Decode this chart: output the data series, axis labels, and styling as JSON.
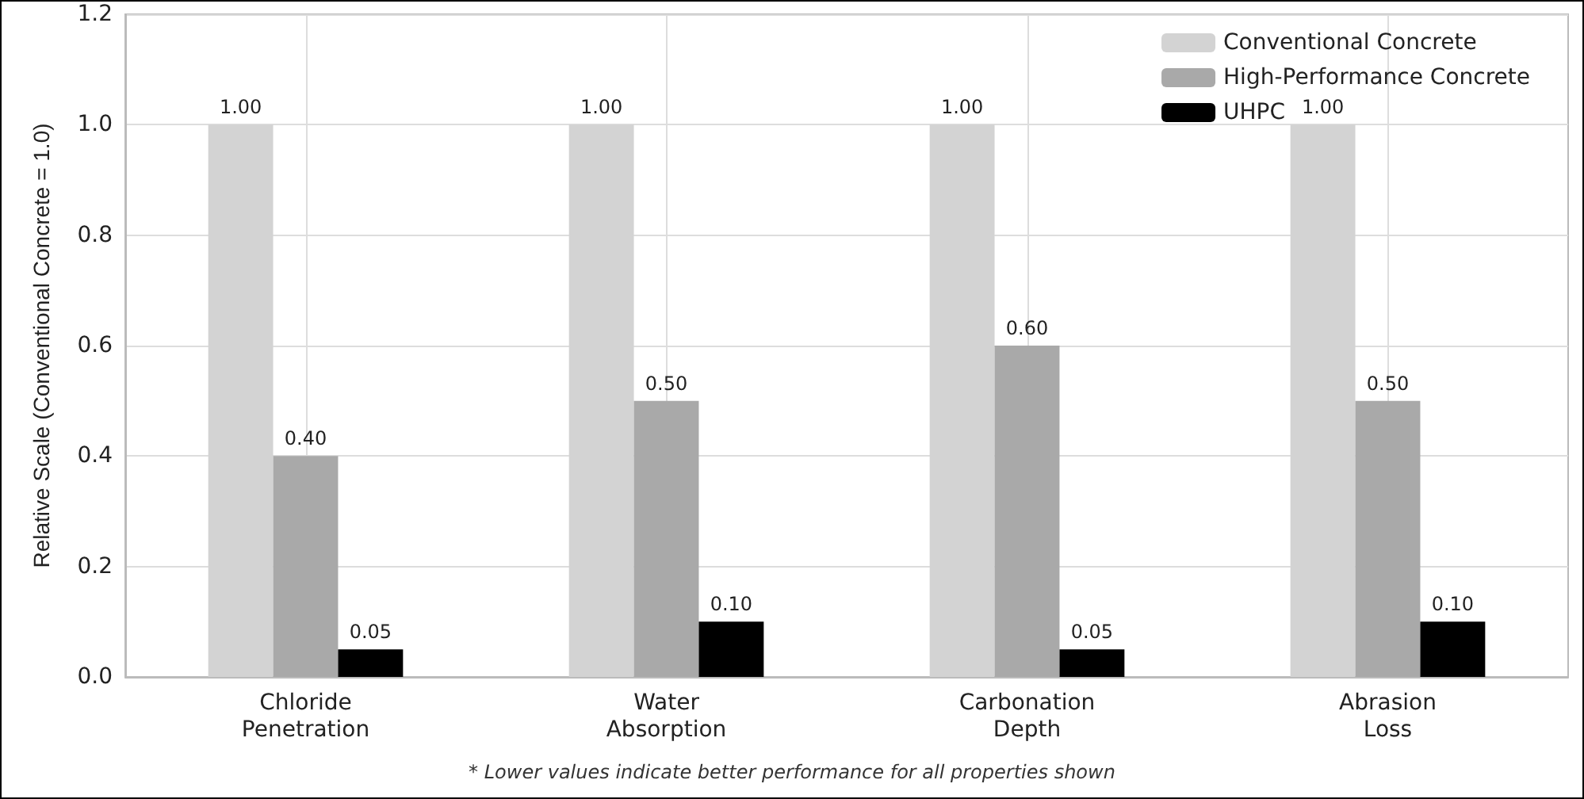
{
  "chart_data": {
    "type": "bar",
    "ylabel": "Relative Scale (Conventional Concrete = 1.0)",
    "categories": [
      "Chloride Penetration",
      "Water Absorption",
      "Carbonation Depth",
      "Abrasion Loss"
    ],
    "series": [
      {
        "name": "Conventional Concrete",
        "color": "#d3d3d3",
        "values": [
          1,
          1,
          1,
          1
        ],
        "value_labels": [
          "1.00",
          "1.00",
          "1.00",
          "1.00"
        ]
      },
      {
        "name": "High-Performance Concrete",
        "color": "#a9a9a9",
        "values": [
          0.4,
          0.5,
          0.6,
          0.5
        ],
        "value_labels": [
          "0.40",
          "0.50",
          "0.60",
          "0.50"
        ]
      },
      {
        "name": "UHPC",
        "color": "#000000",
        "values": [
          0.05,
          0.1,
          0.05,
          0.1
        ],
        "value_labels": [
          "0.05",
          "0.10",
          "0.05",
          "0.10"
        ]
      }
    ],
    "ylim": [
      0,
      1.2
    ],
    "yticks": [
      {
        "value": 0,
        "label": "0.0"
      },
      {
        "value": 0.2,
        "label": "0.2"
      },
      {
        "value": 0.4,
        "label": "0.4"
      },
      {
        "value": 0.6,
        "label": "0.6"
      },
      {
        "value": 0.8,
        "label": "0.8"
      },
      {
        "value": 1,
        "label": "1.0"
      },
      {
        "value": 1.2,
        "label": "1.2"
      }
    ],
    "grid": true,
    "legend": "top right",
    "annotations": [
      "* Lower values indicate better performance for all properties shown"
    ]
  }
}
